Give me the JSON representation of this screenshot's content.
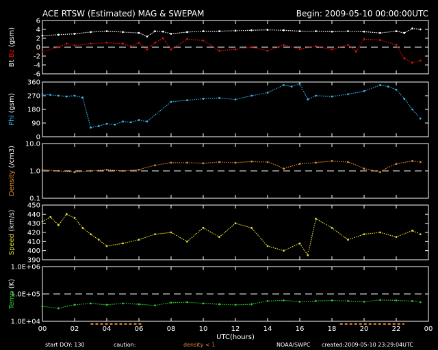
{
  "header": {
    "title": "ACE RTSW (Estimated) MAG & SWEPAM",
    "begin": "Begin: 2009-05-10 00:00:00UTC"
  },
  "footer": {
    "start_doy": "start DOY: 130",
    "caution": "caution:",
    "density_note": "density < 1",
    "noaa": "NOAA/SWPC",
    "created": "created:2009-05-10 23:29:04UTC"
  },
  "colors": {
    "bt": "#ffffff",
    "bz": "#e01010",
    "phi": "#36b4e8",
    "density": "#e08a30",
    "speed": "#e8e030",
    "temp": "#30c830",
    "frame": "#ffffff",
    "caution_bar": "#e08a30"
  },
  "chart_data": [
    {
      "type": "scatter",
      "ylabel_parts": [
        "Bt",
        "Bz",
        "(gsm)"
      ],
      "ylim": [
        -6,
        6
      ],
      "y_ticks": [
        "6",
        "4",
        "2",
        "0",
        "-2",
        "-4",
        "-6"
      ],
      "y_tick_values": [
        6,
        4,
        2,
        0,
        -2,
        -4,
        -6
      ],
      "reference_line": 0,
      "series": [
        {
          "name": "Bt",
          "x": [
            0,
            1,
            2,
            3,
            4,
            5,
            6,
            6.5,
            7,
            7.5,
            8,
            9,
            10,
            11,
            12,
            13,
            14,
            15,
            16,
            17,
            18,
            19,
            20,
            21,
            22,
            22.5,
            23,
            23.5
          ],
          "values": [
            2.6,
            2.8,
            3.0,
            3.4,
            3.6,
            3.4,
            3.2,
            2.4,
            3.6,
            3.5,
            3.0,
            3.4,
            3.6,
            3.6,
            3.7,
            3.8,
            3.9,
            3.8,
            3.6,
            3.6,
            3.5,
            3.6,
            3.5,
            3.2,
            3.6,
            3.2,
            4.2,
            4.0
          ]
        },
        {
          "name": "Bz",
          "x": [
            0,
            1,
            1.5,
            2,
            3,
            4,
            5,
            5.5,
            6,
            6.5,
            7,
            7.5,
            8,
            9,
            10,
            11,
            12,
            13,
            14,
            15,
            16,
            17,
            18,
            19,
            19.5,
            20,
            21,
            22,
            22.5,
            23,
            23.5
          ],
          "values": [
            -1.0,
            0.0,
            0.8,
            0.4,
            0.8,
            1.0,
            0.8,
            0.2,
            1.0,
            -0.5,
            1.0,
            2.0,
            -0.5,
            1.8,
            1.5,
            -0.8,
            -0.5,
            0.0,
            -0.8,
            0.5,
            -0.4,
            0.2,
            -0.5,
            0.5,
            -1.0,
            1.8,
            1.6,
            0.5,
            -2.5,
            -3.5,
            -3.0
          ]
        }
      ]
    },
    {
      "type": "scatter",
      "ylabel_parts": [
        "Phi",
        "(gsm)"
      ],
      "ylim": [
        0,
        360
      ],
      "y_ticks": [
        "360",
        "270",
        "180",
        "90",
        "0"
      ],
      "y_tick_values": [
        360,
        270,
        180,
        90,
        0
      ],
      "series": [
        {
          "name": "Phi",
          "x": [
            0,
            0.5,
            1,
            1.5,
            2,
            2.5,
            3,
            3.5,
            4,
            4.5,
            5,
            5.5,
            6,
            6.5,
            8,
            9,
            10,
            11,
            12,
            13,
            14,
            15,
            15.5,
            16,
            16.5,
            17,
            18,
            19,
            20,
            21,
            21.5,
            22,
            22.5,
            23,
            23.5
          ],
          "values": [
            280,
            275,
            270,
            265,
            270,
            258,
            60,
            70,
            85,
            80,
            100,
            95,
            110,
            100,
            230,
            240,
            250,
            255,
            245,
            270,
            290,
            340,
            330,
            350,
            245,
            270,
            265,
            280,
            300,
            340,
            330,
            310,
            250,
            180,
            120
          ]
        }
      ]
    },
    {
      "type": "scatter",
      "ylabel_parts": [
        "Density",
        "(/cm3)"
      ],
      "y_scale": "log",
      "ylim": [
        0.1,
        10
      ],
      "y_ticks": [
        "10.0",
        "1.0",
        "0.1"
      ],
      "y_tick_values": [
        10,
        1,
        0.1
      ],
      "reference_line": 1,
      "series": [
        {
          "name": "Density",
          "x": [
            0,
            1,
            2,
            3,
            4,
            5,
            6,
            7,
            8,
            9,
            10,
            11,
            12,
            13,
            14,
            15,
            16,
            17,
            18,
            19,
            20,
            21,
            22,
            23,
            23.5
          ],
          "values": [
            1.1,
            1.0,
            0.9,
            1.0,
            1.1,
            1.0,
            1.1,
            1.6,
            2.0,
            2.0,
            1.9,
            2.1,
            2.0,
            2.2,
            2.1,
            1.2,
            1.8,
            2.0,
            2.3,
            2.1,
            1.2,
            0.9,
            1.8,
            2.3,
            2.1
          ]
        }
      ]
    },
    {
      "type": "scatter",
      "ylabel_parts": [
        "Speed",
        "(km/s)"
      ],
      "ylim": [
        390,
        450
      ],
      "y_ticks": [
        "450",
        "440",
        "430",
        "420",
        "410",
        "400",
        "390"
      ],
      "y_tick_values": [
        450,
        440,
        430,
        420,
        410,
        400,
        390
      ],
      "series": [
        {
          "name": "Speed",
          "x": [
            0,
            0.5,
            1,
            1.5,
            2,
            2.5,
            3,
            3.5,
            4,
            5,
            6,
            7,
            8,
            9,
            10,
            11,
            12,
            13,
            14,
            15,
            16,
            16.5,
            17,
            18,
            19,
            20,
            21,
            22,
            23,
            23.5
          ],
          "values": [
            432,
            437,
            428,
            440,
            436,
            425,
            418,
            412,
            405,
            408,
            412,
            418,
            420,
            410,
            425,
            415,
            430,
            425,
            405,
            400,
            408,
            395,
            435,
            425,
            412,
            418,
            420,
            415,
            422,
            418
          ]
        }
      ]
    },
    {
      "type": "scatter",
      "ylabel_parts": [
        "Temp",
        "(K)"
      ],
      "y_scale": "log",
      "ylim": [
        10000,
        1000000
      ],
      "y_ticks": [
        "1.0E+06",
        "1.0E+05",
        "1.0E+04"
      ],
      "y_tick_values": [
        1000000,
        100000,
        10000
      ],
      "reference_line": 100000,
      "series": [
        {
          "name": "Temp",
          "x": [
            0,
            1,
            2,
            3,
            4,
            5,
            6,
            7,
            8,
            9,
            10,
            11,
            12,
            13,
            14,
            15,
            16,
            17,
            18,
            19,
            20,
            21,
            22,
            23,
            23.5
          ],
          "values": [
            35000,
            30000,
            40000,
            45000,
            40000,
            45000,
            42000,
            38000,
            48000,
            50000,
            45000,
            42000,
            40000,
            42000,
            55000,
            58000,
            52000,
            55000,
            58000,
            55000,
            52000,
            60000,
            58000,
            55000,
            50000
          ]
        }
      ]
    }
  ],
  "x_axis": {
    "label": "UTC(hours)",
    "xlim": [
      0,
      24
    ],
    "ticks": [
      "00",
      "02",
      "04",
      "06",
      "08",
      "10",
      "12",
      "14",
      "16",
      "18",
      "20",
      "22",
      "00"
    ],
    "tick_values": [
      0,
      2,
      4,
      6,
      8,
      10,
      12,
      14,
      16,
      18,
      20,
      22,
      24
    ]
  }
}
